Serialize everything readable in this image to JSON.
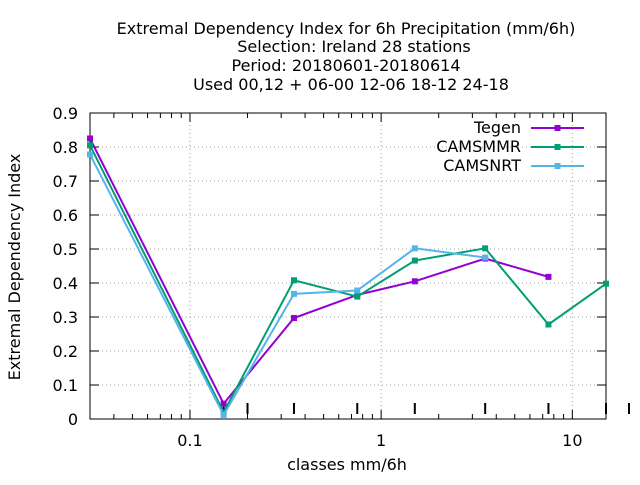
{
  "chart_data": {
    "type": "line",
    "title_lines": [
      "Extremal Dependency Index  for 6h Precipitation (mm/6h)",
      "Selection: Ireland     28 stations",
      "Period: 20180601-20180614",
      "Used  00,12  + 06-00 12-06 18-12 24-18"
    ],
    "xlabel": "classes mm/6h",
    "ylabel": "Extremal Dependency Index",
    "x_scale": "log",
    "xlim": [
      0.03,
      15
    ],
    "ylim": [
      0,
      0.9
    ],
    "x_ticks": [
      {
        "value": 0.1,
        "label": "0.1"
      },
      {
        "value": 1,
        "label": "1"
      },
      {
        "value": 10,
        "label": "10"
      }
    ],
    "y_ticks": [
      {
        "value": 0,
        "label": "0"
      },
      {
        "value": 0.1,
        "label": "0.1"
      },
      {
        "value": 0.2,
        "label": "0.2"
      },
      {
        "value": 0.3,
        "label": "0.3"
      },
      {
        "value": 0.4,
        "label": "0.4"
      },
      {
        "value": 0.5,
        "label": "0.5"
      },
      {
        "value": 0.6,
        "label": "0.6"
      },
      {
        "value": 0.7,
        "label": "0.7"
      },
      {
        "value": 0.8,
        "label": "0.8"
      },
      {
        "value": 0.9,
        "label": "0.9"
      }
    ],
    "class_limit_ticks": [
      0.03,
      0.15,
      0.2,
      0.35,
      0.75,
      1.5,
      3.5,
      7.5,
      15,
      25
    ],
    "grid": true,
    "legend_position": "top-right",
    "series": [
      {
        "name": "Tegen",
        "color": "#9400d3",
        "x": [
          0.03,
          0.15,
          0.35,
          0.75,
          1.5,
          3.5,
          7.5
        ],
        "y": [
          0.825,
          0.045,
          0.297,
          0.365,
          0.405,
          0.472,
          0.418
        ]
      },
      {
        "name": "CAMSMMR",
        "color": "#009e73",
        "x": [
          0.03,
          0.15,
          0.35,
          0.75,
          1.5,
          3.5,
          7.5,
          15
        ],
        "y": [
          0.805,
          0.02,
          0.408,
          0.36,
          0.466,
          0.502,
          0.278,
          0.398
        ]
      },
      {
        "name": "CAMSNRT",
        "color": "#56b4e9",
        "x": [
          0.03,
          0.15,
          0.35,
          0.75,
          1.5,
          3.5
        ],
        "y": [
          0.778,
          0.012,
          0.368,
          0.378,
          0.502,
          0.475
        ]
      }
    ]
  }
}
